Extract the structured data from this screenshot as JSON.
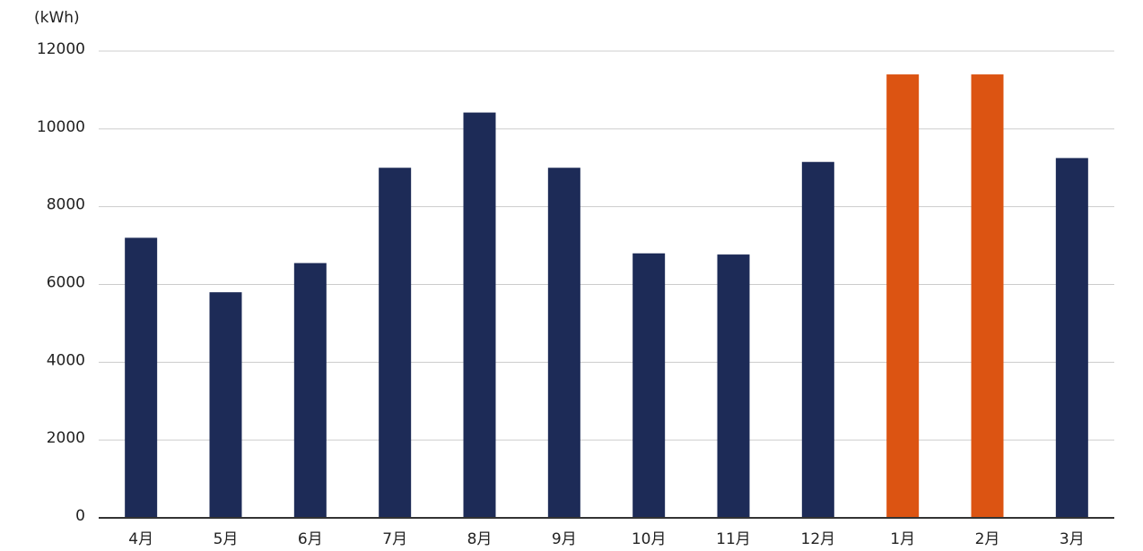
{
  "chart_data": {
    "type": "bar",
    "y_label": "(kWh)",
    "categories": [
      "4月",
      "5月",
      "6月",
      "7月",
      "8月",
      "9月",
      "10月",
      "11月",
      "12月",
      "1月",
      "2月",
      "3月"
    ],
    "values": [
      7200,
      5800,
      6550,
      9000,
      10420,
      9000,
      6800,
      6770,
      9150,
      11400,
      11400,
      9250
    ],
    "colors": [
      "#1d2b57",
      "#1d2b57",
      "#1d2b57",
      "#1d2b57",
      "#1d2b57",
      "#1d2b57",
      "#1d2b57",
      "#1d2b57",
      "#1d2b57",
      "#dc5412",
      "#dc5412",
      "#1d2b57"
    ],
    "ylim": [
      0,
      12000
    ],
    "yticks": [
      0,
      2000,
      4000,
      6000,
      8000,
      10000,
      12000
    ],
    "grid": true
  }
}
